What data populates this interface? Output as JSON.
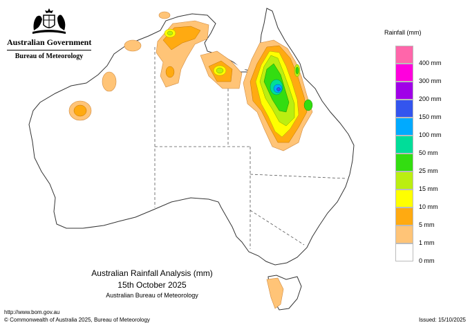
{
  "header": {
    "government": "Australian Government",
    "bureau": "Bureau of Meteorology",
    "crest_icon": "coat-of-arms-icon"
  },
  "map": {
    "title": "Australian Rainfall Analysis (mm)",
    "date": "15th October 2025",
    "credit": "Australian Bureau of Meteorology",
    "land_outline_color": "#333333",
    "border_color": "#555555"
  },
  "legend": {
    "title": "Rainfall (mm)",
    "items": [
      {
        "label": "400 mm",
        "color": "#ff66aa"
      },
      {
        "label": "300 mm",
        "color": "#ff00dd"
      },
      {
        "label": "200 mm",
        "color": "#a000e8"
      },
      {
        "label": "150 mm",
        "color": "#3355ee"
      },
      {
        "label": "100 mm",
        "color": "#00aaff"
      },
      {
        "label": "50 mm",
        "color": "#00dd99"
      },
      {
        "label": "25 mm",
        "color": "#33dd11"
      },
      {
        "label": "15 mm",
        "color": "#bbee11"
      },
      {
        "label": "10 mm",
        "color": "#ffff00"
      },
      {
        "label": "5 mm",
        "color": "#ffaa11"
      },
      {
        "label": "1 mm",
        "color": "#ffc477"
      },
      {
        "label": "0 mm",
        "color": "#ffffff"
      }
    ]
  },
  "footer": {
    "url": "http://www.bom.gov.au",
    "copyright": "© Commonwealth of Australia 2025, Bureau of Meteorology",
    "issued": "Issued: 15/10/2025"
  }
}
